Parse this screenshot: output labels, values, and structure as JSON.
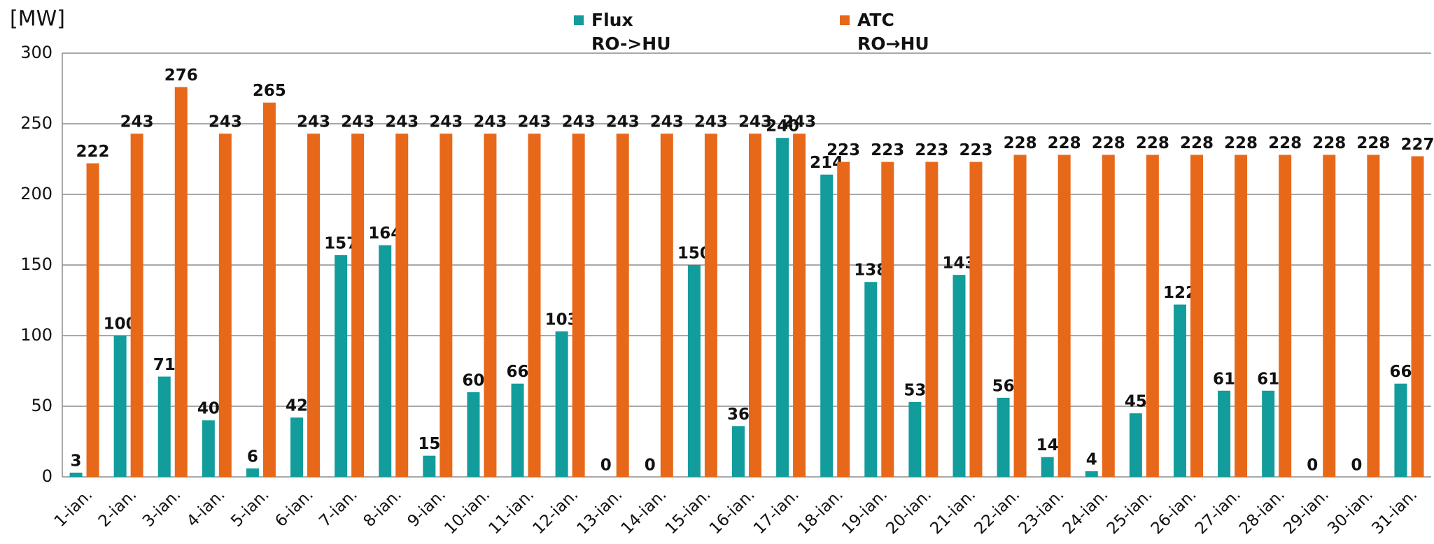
{
  "chart_data": {
    "type": "bar",
    "y_label": "[MW]",
    "categories": [
      "1-ian.",
      "2-ian.",
      "3-ian.",
      "4-ian.",
      "5-ian.",
      "6-ian.",
      "7-ian.",
      "8-ian.",
      "9-ian.",
      "10-ian.",
      "11-ian.",
      "12-ian.",
      "13-ian.",
      "14-ian.",
      "15-ian.",
      "16-ian.",
      "17-ian.",
      "18-ian.",
      "19-ian.",
      "20-ian.",
      "21-ian.",
      "22-ian.",
      "23-ian.",
      "24-ian.",
      "25-ian.",
      "26-ian.",
      "27-ian.",
      "28-ian.",
      "29-ian.",
      "30-ian.",
      "31-ian."
    ],
    "series": [
      {
        "name": "Flux\nRO->HU",
        "color": "#129c9c",
        "values": [
          3,
          100,
          71,
          40,
          6,
          42,
          157,
          164,
          15,
          60,
          66,
          103,
          0,
          0,
          150,
          36,
          240,
          214,
          138,
          53,
          143,
          56,
          14,
          4,
          45,
          122,
          61,
          61,
          0,
          0,
          66
        ]
      },
      {
        "name": "ATC\nRO→HU",
        "color": "#e8681a",
        "values": [
          222,
          243,
          276,
          243,
          265,
          243,
          243,
          243,
          243,
          243,
          243,
          243,
          243,
          243,
          243,
          243,
          243,
          223,
          223,
          223,
          223,
          228,
          228,
          228,
          228,
          228,
          228,
          228,
          228,
          228,
          227
        ]
      }
    ],
    "ylim": [
      0,
      300
    ],
    "yticks": [
      0,
      50,
      100,
      150,
      200,
      250,
      300
    ],
    "grid": true
  }
}
